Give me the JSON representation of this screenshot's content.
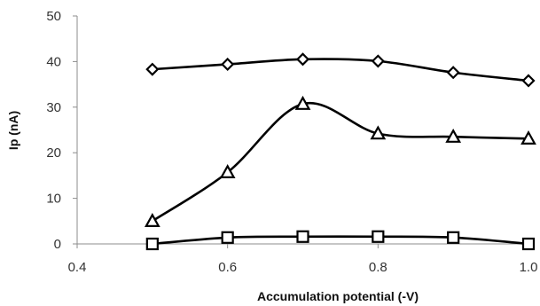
{
  "chart_data": {
    "type": "line",
    "title": "",
    "xlabel": "Accumulation potential (-V)",
    "ylabel": "Ip (nA)",
    "xlim": [
      0.4,
      1.0
    ],
    "ylim": [
      0,
      50
    ],
    "x_ticks": [
      "0.4",
      "0.6",
      "0.8",
      "1.0"
    ],
    "y_ticks": [
      "0",
      "10",
      "20",
      "30",
      "40",
      "50"
    ],
    "grid": false,
    "legend": "none",
    "smooth": true,
    "series": [
      {
        "marker": "diamond",
        "color": "#000000",
        "x": [
          0.5,
          0.6,
          0.7,
          0.8,
          0.9,
          1.0
        ],
        "y": [
          38.3,
          39.4,
          40.5,
          40.1,
          37.6,
          35.8
        ]
      },
      {
        "marker": "triangle",
        "color": "#000000",
        "x": [
          0.5,
          0.6,
          0.7,
          0.8,
          0.9,
          1.0
        ],
        "y": [
          5.0,
          15.7,
          30.7,
          24.2,
          23.5,
          23.1
        ]
      },
      {
        "marker": "square",
        "color": "#000000",
        "x": [
          0.5,
          0.6,
          0.7,
          0.8,
          0.9,
          1.0
        ],
        "y": [
          0.0,
          1.4,
          1.6,
          1.6,
          1.4,
          0.0
        ]
      }
    ]
  }
}
